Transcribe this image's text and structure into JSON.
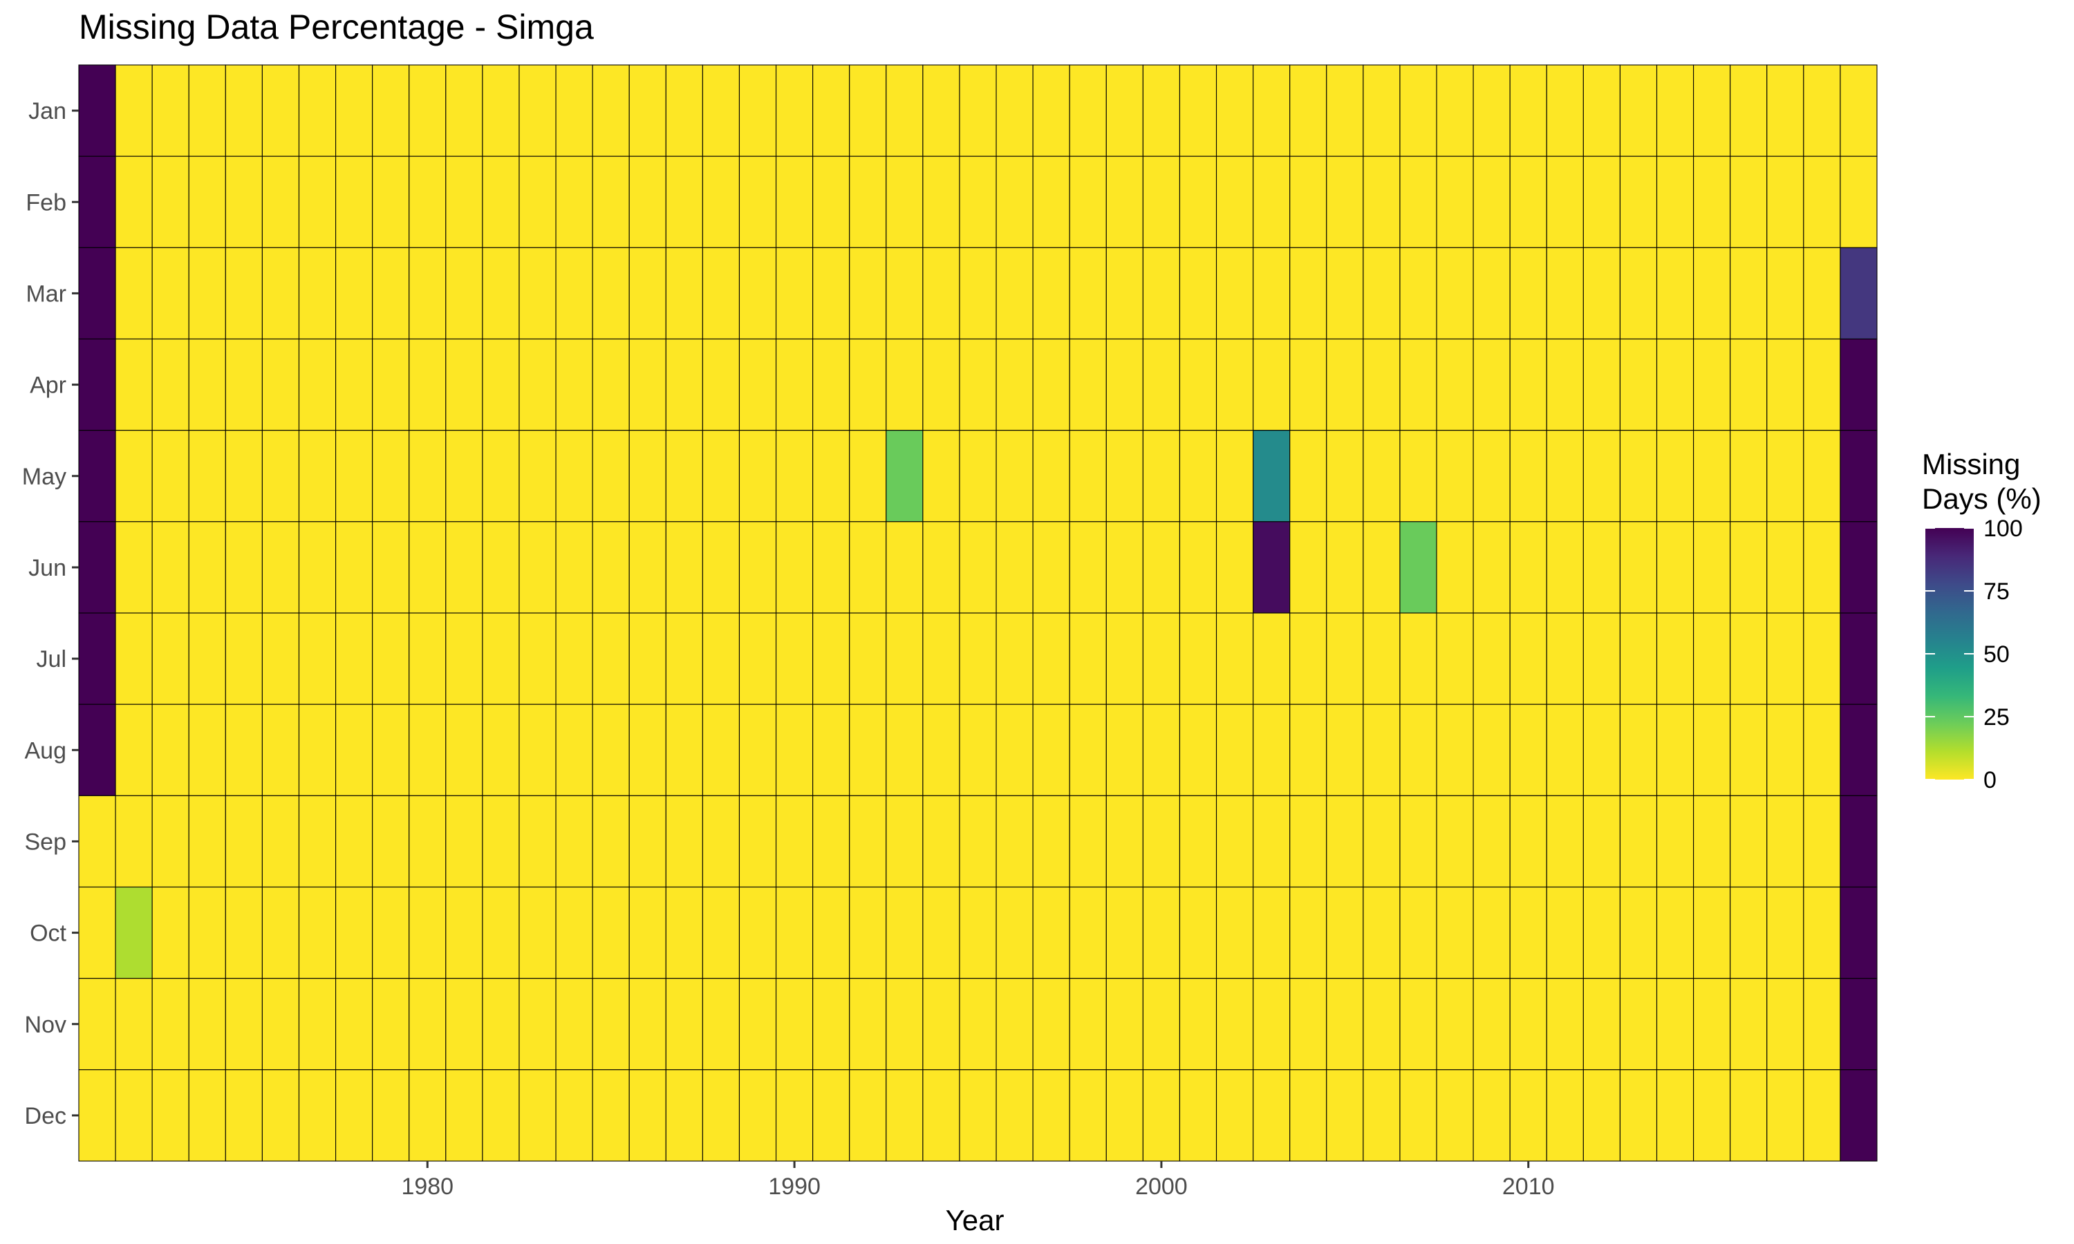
{
  "chart_data": {
    "type": "heatmap",
    "title": "Missing Data Percentage - Simga",
    "xlabel": "Year",
    "ylabel": "",
    "x_range": [
      1971,
      2019
    ],
    "x_ticks": [
      1980,
      1990,
      2000,
      2010
    ],
    "y_categories": [
      "Jan",
      "Feb",
      "Mar",
      "Apr",
      "May",
      "Jun",
      "Jul",
      "Aug",
      "Sep",
      "Oct",
      "Nov",
      "Dec"
    ],
    "default_value": 0,
    "nonzero_cells": [
      {
        "year": 1971,
        "month": "Jan",
        "value": 100
      },
      {
        "year": 1971,
        "month": "Feb",
        "value": 100
      },
      {
        "year": 1971,
        "month": "Mar",
        "value": 100
      },
      {
        "year": 1971,
        "month": "Apr",
        "value": 100
      },
      {
        "year": 1971,
        "month": "May",
        "value": 100
      },
      {
        "year": 1971,
        "month": "Jun",
        "value": 100
      },
      {
        "year": 1971,
        "month": "Jul",
        "value": 100
      },
      {
        "year": 1971,
        "month": "Aug",
        "value": 100
      },
      {
        "year": 1972,
        "month": "Oct",
        "value": 12
      },
      {
        "year": 1993,
        "month": "May",
        "value": 23
      },
      {
        "year": 2003,
        "month": "May",
        "value": 52
      },
      {
        "year": 2003,
        "month": "Jun",
        "value": 97
      },
      {
        "year": 2007,
        "month": "Jun",
        "value": 23
      },
      {
        "year": 2019,
        "month": "Mar",
        "value": 84
      },
      {
        "year": 2019,
        "month": "Apr",
        "value": 100
      },
      {
        "year": 2019,
        "month": "May",
        "value": 100
      },
      {
        "year": 2019,
        "month": "Jun",
        "value": 100
      },
      {
        "year": 2019,
        "month": "Jul",
        "value": 100
      },
      {
        "year": 2019,
        "month": "Aug",
        "value": 100
      },
      {
        "year": 2019,
        "month": "Sep",
        "value": 100
      },
      {
        "year": 2019,
        "month": "Oct",
        "value": 100
      },
      {
        "year": 2019,
        "month": "Nov",
        "value": 100
      },
      {
        "year": 2019,
        "month": "Dec",
        "value": 100
      }
    ],
    "color_scale": {
      "name": "viridis",
      "direction": "reversed",
      "range": [
        0,
        100
      ],
      "stops": [
        "#FDE725",
        "#B4DE2C",
        "#6DCD59",
        "#35B779",
        "#1F9E89",
        "#26828E",
        "#31688E",
        "#3E4A89",
        "#482878",
        "#440154"
      ]
    },
    "legend": {
      "title_line1": "Missing",
      "title_line2": "Days (%)",
      "ticks": [
        100,
        75,
        50,
        25,
        0
      ],
      "position": "right"
    },
    "grid": false,
    "cell_border_color": "#000000"
  }
}
